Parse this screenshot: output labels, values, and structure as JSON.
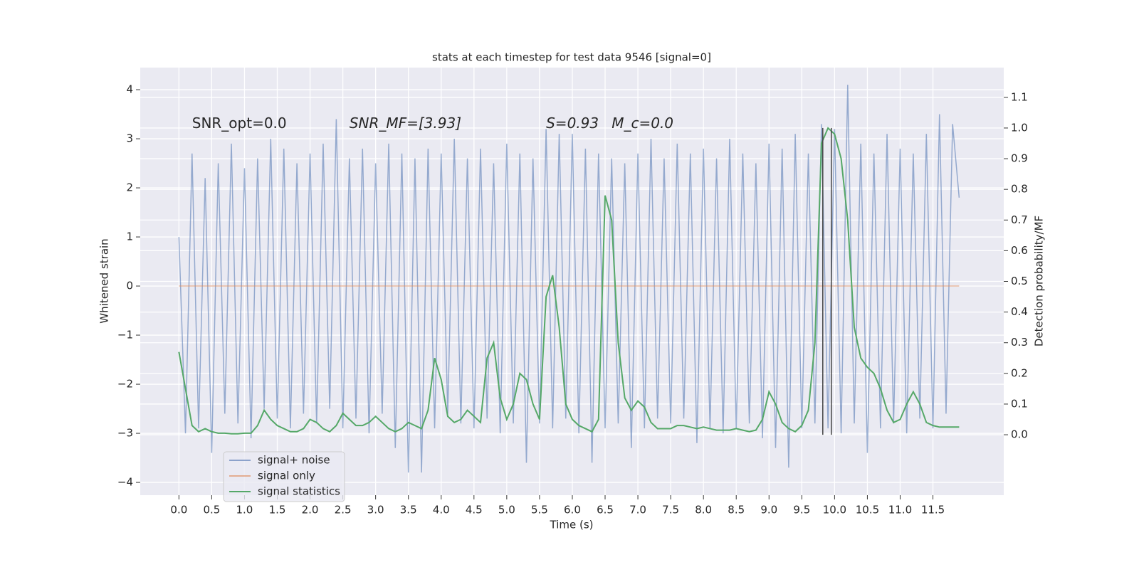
{
  "chart_data": {
    "type": "line",
    "title": "stats at each timestep for test data 9546 [signal=0]",
    "xlabel": "Time (s)",
    "ylabel": "Whitened strain",
    "y2label": "Detection probability/MF",
    "annotations": [
      {
        "text": "SNR_opt=0.0",
        "x": 0.2,
        "y": 3.3
      },
      {
        "text": "SNR_MF=[3.93]",
        "x": 2.6,
        "y": 3.3
      },
      {
        "text": "S=0.93",
        "x": 5.6,
        "y": 3.3
      },
      {
        "text": "M_c=0.0",
        "x": 6.6,
        "y": 3.3
      }
    ],
    "vlines": {
      "color": "#444444",
      "x": [
        9.82,
        9.95
      ],
      "ymin": 0,
      "ymax": 1.0,
      "axis": "y2"
    },
    "x": [
      0.0,
      0.1,
      0.2,
      0.3,
      0.4,
      0.5,
      0.6,
      0.7,
      0.8,
      0.9,
      1.0,
      1.1,
      1.2,
      1.3,
      1.4,
      1.5,
      1.6,
      1.7,
      1.8,
      1.9,
      2.0,
      2.1,
      2.2,
      2.3,
      2.4,
      2.5,
      2.6,
      2.7,
      2.8,
      2.9,
      3.0,
      3.1,
      3.2,
      3.3,
      3.4,
      3.5,
      3.6,
      3.7,
      3.8,
      3.9,
      4.0,
      4.1,
      4.2,
      4.3,
      4.4,
      4.5,
      4.6,
      4.7,
      4.8,
      4.9,
      5.0,
      5.1,
      5.2,
      5.3,
      5.4,
      5.5,
      5.6,
      5.7,
      5.8,
      5.9,
      6.0,
      6.1,
      6.2,
      6.3,
      6.4,
      6.5,
      6.6,
      6.7,
      6.8,
      6.9,
      7.0,
      7.1,
      7.2,
      7.3,
      7.4,
      7.5,
      7.6,
      7.7,
      7.8,
      7.9,
      8.0,
      8.1,
      8.2,
      8.3,
      8.4,
      8.5,
      8.6,
      8.7,
      8.8,
      8.9,
      9.0,
      9.1,
      9.2,
      9.3,
      9.4,
      9.5,
      9.6,
      9.7,
      9.8,
      9.9,
      10.0,
      10.1,
      10.2,
      10.3,
      10.4,
      10.5,
      10.6,
      10.7,
      10.8,
      10.9,
      11.0,
      11.1,
      11.2,
      11.3,
      11.4,
      11.5,
      11.6,
      11.7,
      11.8,
      11.9
    ],
    "series": [
      {
        "name": "signal+ noise",
        "color": "#4c72b0",
        "values": [
          1.0,
          -3.0,
          2.7,
          -2.9,
          2.2,
          -3.4,
          2.5,
          -2.6,
          2.9,
          -2.8,
          2.4,
          -3.1,
          2.6,
          -2.5,
          3.0,
          -2.7,
          2.8,
          -2.9,
          2.5,
          -2.6,
          2.7,
          -2.8,
          2.9,
          -2.5,
          3.4,
          -2.9,
          2.6,
          -2.7,
          2.8,
          -3.0,
          2.5,
          -2.6,
          2.9,
          -3.3,
          2.7,
          -3.8,
          2.6,
          -3.8,
          2.8,
          -2.9,
          2.7,
          -2.6,
          3.0,
          -2.8,
          2.6,
          -2.9,
          2.8,
          -2.7,
          2.5,
          -3.0,
          2.9,
          -2.8,
          2.7,
          -3.6,
          2.6,
          -2.8,
          3.2,
          -2.9,
          3.1,
          -2.7,
          3.1,
          -3.0,
          2.8,
          -3.6,
          2.7,
          -2.9,
          2.6,
          -2.8,
          2.5,
          -3.3,
          2.7,
          -2.9,
          3.0,
          -2.7,
          2.6,
          -2.8,
          2.9,
          -2.7,
          2.7,
          -3.2,
          2.8,
          -2.9,
          2.6,
          -3.0,
          3.0,
          -2.9,
          2.7,
          -2.8,
          2.5,
          -3.1,
          2.9,
          -3.3,
          2.8,
          -3.7,
          3.1,
          -2.9,
          2.7,
          -2.8,
          3.3,
          -2.9,
          3.2,
          -3.0,
          4.1,
          -2.8,
          2.9,
          -3.4,
          2.7,
          -2.9,
          3.1,
          -2.8,
          2.8,
          -3.0,
          2.7,
          -2.7,
          3.1,
          -2.9,
          3.5,
          -2.6,
          3.3,
          1.8
        ]
      },
      {
        "name": "signal only",
        "color": "#dd8452",
        "values": [
          0,
          0,
          0,
          0,
          0,
          0,
          0,
          0,
          0,
          0,
          0,
          0,
          0,
          0,
          0,
          0,
          0,
          0,
          0,
          0,
          0,
          0,
          0,
          0,
          0,
          0,
          0,
          0,
          0,
          0,
          0,
          0,
          0,
          0,
          0,
          0,
          0,
          0,
          0,
          0,
          0,
          0,
          0,
          0,
          0,
          0,
          0,
          0,
          0,
          0,
          0,
          0,
          0,
          0,
          0,
          0,
          0,
          0,
          0,
          0,
          0,
          0,
          0,
          0,
          0,
          0,
          0,
          0,
          0,
          0,
          0,
          0,
          0,
          0,
          0,
          0,
          0,
          0,
          0,
          0,
          0,
          0,
          0,
          0,
          0,
          0,
          0,
          0,
          0,
          0,
          0,
          0,
          0,
          0,
          0,
          0,
          0,
          0,
          0,
          0,
          0,
          0,
          0,
          0,
          0,
          0,
          0,
          0,
          0,
          0,
          0,
          0,
          0,
          0,
          0,
          0,
          0,
          0,
          0,
          0
        ]
      },
      {
        "name": "signal statistics",
        "color": "#55a868",
        "axis": "y2",
        "values": [
          0.27,
          0.15,
          0.03,
          0.01,
          0.02,
          0.01,
          0.005,
          0.005,
          0.003,
          0.003,
          0.005,
          0.005,
          0.03,
          0.08,
          0.05,
          0.03,
          0.02,
          0.01,
          0.01,
          0.02,
          0.05,
          0.04,
          0.02,
          0.01,
          0.03,
          0.07,
          0.05,
          0.03,
          0.03,
          0.04,
          0.06,
          0.04,
          0.02,
          0.01,
          0.02,
          0.04,
          0.03,
          0.02,
          0.08,
          0.25,
          0.18,
          0.06,
          0.04,
          0.05,
          0.08,
          0.06,
          0.04,
          0.25,
          0.3,
          0.12,
          0.05,
          0.1,
          0.2,
          0.18,
          0.1,
          0.05,
          0.45,
          0.52,
          0.35,
          0.1,
          0.05,
          0.03,
          0.02,
          0.01,
          0.05,
          0.78,
          0.7,
          0.3,
          0.12,
          0.08,
          0.11,
          0.09,
          0.04,
          0.02,
          0.02,
          0.02,
          0.03,
          0.03,
          0.025,
          0.02,
          0.025,
          0.02,
          0.015,
          0.015,
          0.015,
          0.02,
          0.015,
          0.01,
          0.015,
          0.05,
          0.14,
          0.1,
          0.04,
          0.02,
          0.01,
          0.03,
          0.08,
          0.3,
          0.95,
          1.0,
          0.98,
          0.9,
          0.7,
          0.35,
          0.25,
          0.22,
          0.2,
          0.15,
          0.08,
          0.04,
          0.05,
          0.1,
          0.14,
          0.1,
          0.04,
          0.03,
          0.025,
          0.025,
          0.025,
          0.025
        ]
      }
    ],
    "xlim": [
      -0.59,
      12.58
    ],
    "ylim": [
      -4.26,
      4.45
    ],
    "y2lim": [
      -0.197,
      1.197
    ],
    "xticks": [
      {
        "value": 0,
        "label": "0.0"
      },
      {
        "value": 0.5,
        "label": "0.5"
      },
      {
        "value": 1,
        "label": "1.0"
      },
      {
        "value": 1.5,
        "label": "1.5"
      },
      {
        "value": 2,
        "label": "2.0"
      },
      {
        "value": 2.5,
        "label": "2.5"
      },
      {
        "value": 3,
        "label": "3.0"
      },
      {
        "value": 3.5,
        "label": "3.5"
      },
      {
        "value": 4,
        "label": "4.0"
      },
      {
        "value": 4.5,
        "label": "4.5"
      },
      {
        "value": 5,
        "label": "5.0"
      },
      {
        "value": 5.5,
        "label": "5.5"
      },
      {
        "value": 6,
        "label": "6.0"
      },
      {
        "value": 6.5,
        "label": "6.5"
      },
      {
        "value": 7,
        "label": "7.0"
      },
      {
        "value": 7.5,
        "label": "7.5"
      },
      {
        "value": 8,
        "label": "8.0"
      },
      {
        "value": 8.5,
        "label": "8.5"
      },
      {
        "value": 9,
        "label": "9.0"
      },
      {
        "value": 9.5,
        "label": "9.5"
      },
      {
        "value": 10,
        "label": "10.0"
      },
      {
        "value": 10.5,
        "label": "10.5"
      },
      {
        "value": 11,
        "label": "11.0"
      },
      {
        "value": 11.5,
        "label": "11.5"
      }
    ],
    "yticks": [
      {
        "value": -4,
        "label": "−4"
      },
      {
        "value": -3,
        "label": "−3"
      },
      {
        "value": -2,
        "label": "−2"
      },
      {
        "value": -1,
        "label": "−1"
      },
      0,
      1,
      2,
      3,
      4
    ],
    "y2ticks": [
      {
        "value": 0,
        "label": "0.0"
      },
      {
        "value": 0.1,
        "label": "0.1"
      },
      {
        "value": 0.2,
        "label": "0.2"
      },
      {
        "value": 0.3,
        "label": "0.3"
      },
      {
        "value": 0.4,
        "label": "0.4"
      },
      {
        "value": 0.5,
        "label": "0.5"
      },
      {
        "value": 0.6,
        "label": "0.6"
      },
      {
        "value": 0.7,
        "label": "0.7"
      },
      {
        "value": 0.8,
        "label": "0.8"
      },
      {
        "value": 0.9,
        "label": "0.9"
      },
      {
        "value": 1.0,
        "label": "1.0"
      },
      {
        "value": 1.1,
        "label": "1.1"
      }
    ],
    "grid": true,
    "legend": "lower left"
  }
}
